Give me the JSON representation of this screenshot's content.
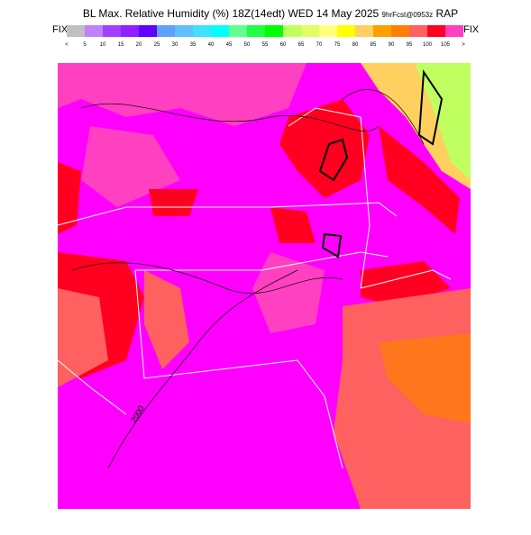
{
  "header": {
    "title": "BL Max. Relative Humidity (%) 18Z(14edt) WED 14 May 2025",
    "forecast": "9hrFcst@0953z",
    "model": "RAP"
  },
  "colorbar": {
    "left_label": "FIX",
    "right_label": "FIX",
    "labels": [
      "<",
      "5",
      "10",
      "15",
      "20",
      "25",
      "30",
      "35",
      "40",
      "45",
      "50",
      "55",
      "60",
      "65",
      "70",
      "75",
      "80",
      "85",
      "90",
      "95",
      "100",
      "105",
      ">"
    ],
    "colors": [
      "#c0c0c0",
      "#c080ff",
      "#a040ff",
      "#9020ff",
      "#6000ff",
      "#60a0ff",
      "#60c0ff",
      "#40e0ff",
      "#00ffff",
      "#60ff90",
      "#20ff40",
      "#00ff00",
      "#c0ff60",
      "#e0ff60",
      "#ffff80",
      "#ffff00",
      "#ffd060",
      "#ffa000",
      "#ff8000",
      "#ff6060",
      "#ff0020",
      "#ff40c0"
    ]
  },
  "map": {
    "label": "2000"
  }
}
